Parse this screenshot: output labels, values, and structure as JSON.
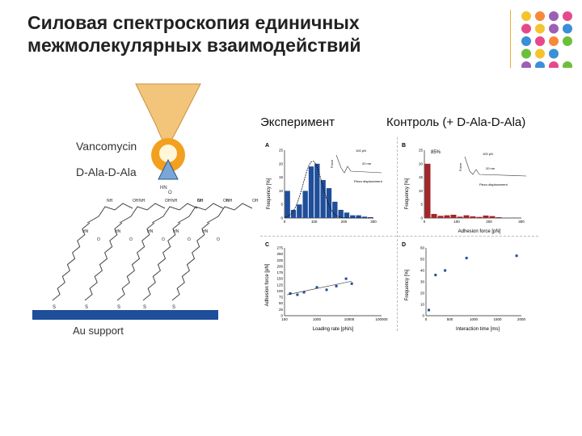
{
  "slide": {
    "title_line1": "Силовая спектроскопия единичных",
    "title_line2": "межмолекулярных взаимодействий",
    "label_experiment": "Эксперимент",
    "label_control": "Контроль (+ D-Ala-D-Ala)"
  },
  "decor": {
    "dot_colors": [
      "#f4c430",
      "#f58a3a",
      "#9c5fb5",
      "#e6498b",
      "#e6498b",
      "#f4c430",
      "#9c5fb5",
      "#3a8fd6",
      "#3a8fd6",
      "#e6498b",
      "#f58a3a",
      "#6cbf3a",
      "#6cbf3a",
      "#f4c430",
      "#3a8fd6",
      "",
      "#9c5fb5",
      "#3a8fd6",
      "#e6498b",
      "#6cbf3a"
    ]
  },
  "diagram": {
    "vancomycin": "Vancomycin",
    "dala": "D-Ala-D-Ala",
    "support": "Au support",
    "nh": "NH",
    "hn": "HN",
    "oh": "OH",
    "o": "O",
    "s": "S"
  },
  "panels": {
    "a": {
      "letter": "A",
      "ylabel": "Frequency [%]",
      "xlabel": "",
      "yticks": [
        "0",
        "5",
        "10",
        "15",
        "20",
        "25"
      ],
      "xticks": [
        "0",
        "100",
        "200",
        "300"
      ],
      "inset_scale": "100 pN",
      "inset_dist": "20 nm",
      "inset_force": "Force",
      "inset_x": "Piezo displacement"
    },
    "b": {
      "letter": "B",
      "ylabel": "Frequency [%]",
      "xlabel": "Adhesion force [pN]",
      "yticks": [
        "0",
        "5",
        "10",
        "15",
        "20",
        "25"
      ],
      "xticks": [
        "0",
        "100",
        "200",
        "300"
      ],
      "peak_label": "85%",
      "inset_scale": "100 pN",
      "inset_dist": "20 nm",
      "inset_force": "Force",
      "inset_x": "Piezo displacement"
    },
    "c": {
      "letter": "C",
      "ylabel": "Adhesion force [pN]",
      "xlabel": "Loading rate [pN/s]",
      "yticks": [
        "0",
        "25",
        "50",
        "75",
        "100",
        "125",
        "150",
        "175",
        "200",
        "225",
        "250",
        "275"
      ],
      "xticks": [
        "100",
        "1000",
        "10000",
        "100000"
      ]
    },
    "d": {
      "letter": "D",
      "ylabel": "Frequency [%]",
      "xlabel": "Interaction time [ms]",
      "yticks": [
        "0",
        "10",
        "20",
        "30",
        "40",
        "50",
        "60"
      ],
      "xticks": [
        "0",
        "500",
        "1000",
        "1500",
        "2000"
      ]
    }
  },
  "chart_data": [
    {
      "type": "bar",
      "panel": "A",
      "series": [
        {
          "values": [
            10,
            3,
            5,
            10,
            19,
            20,
            14,
            11,
            6,
            3,
            2,
            1,
            1,
            0.5,
            0.3
          ]
        }
      ],
      "x": [
        10,
        30,
        50,
        70,
        90,
        110,
        130,
        150,
        170,
        190,
        210,
        230,
        250,
        270,
        290
      ],
      "xlim": [
        0,
        300
      ],
      "ylim": [
        0,
        25
      ]
    },
    {
      "type": "bar",
      "panel": "B",
      "series": [
        {
          "values": [
            20,
            1.5,
            0.8,
            1,
            1.2,
            0.5,
            1,
            0.6,
            0.4,
            0.9,
            0.7,
            0.3
          ]
        }
      ],
      "x": [
        10,
        30,
        50,
        70,
        90,
        110,
        130,
        150,
        170,
        190,
        210,
        230
      ],
      "xlim": [
        0,
        300
      ],
      "ylim": [
        0,
        25
      ]
    },
    {
      "type": "scatter",
      "panel": "C",
      "x": [
        150,
        250,
        400,
        1000,
        2000,
        4000,
        8000,
        12000
      ],
      "y": [
        90,
        85,
        95,
        115,
        105,
        120,
        150,
        130
      ],
      "xscale": "log",
      "ylim": [
        0,
        275
      ]
    },
    {
      "type": "scatter",
      "panel": "D",
      "x": [
        60,
        200,
        400,
        850,
        1900
      ],
      "y": [
        5,
        36,
        40,
        51,
        53
      ],
      "xlim": [
        0,
        2000
      ],
      "ylim": [
        0,
        60
      ]
    }
  ]
}
